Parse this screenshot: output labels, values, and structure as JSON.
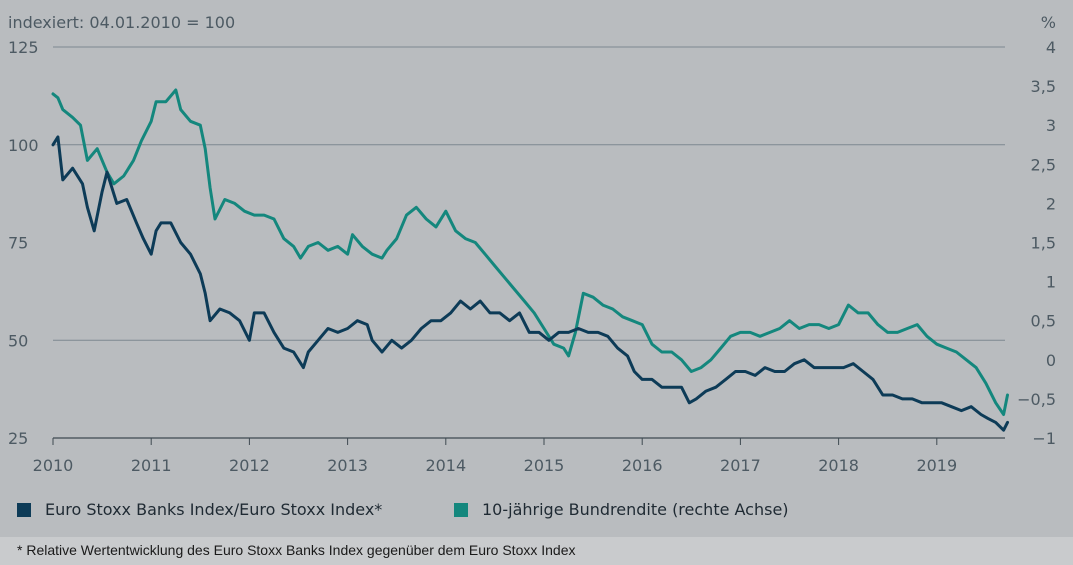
{
  "header": {
    "left_label": "indexiert: 04.01.2010 = 100",
    "right_label": "%"
  },
  "legend": {
    "series1": "Euro Stoxx Banks Index/Euro Stoxx Index*",
    "series2": "10-jährige Bundrendite (rechte Achse)"
  },
  "footnote": "* Relative Wertentwicklung des Euro Stoxx Banks Index gegenüber dem Euro Stoxx Index",
  "colors": {
    "series1": "#0d3b57",
    "series2": "#14877d",
    "grid": "#7d8891",
    "background": "#b9bcbf"
  },
  "chart_data": {
    "type": "line",
    "x_ticks": [
      "2010",
      "2011",
      "2012",
      "2013",
      "2014",
      "2015",
      "2016",
      "2017",
      "2018",
      "2019"
    ],
    "y_left": {
      "ticks": [
        "125",
        "100",
        "75",
        "50",
        "25"
      ],
      "range": [
        25,
        125
      ]
    },
    "y_right": {
      "ticks": [
        "4",
        "3,5",
        "3",
        "2,5",
        "2",
        "1,5",
        "1",
        "0,5",
        "0",
        "−0,5",
        "−1"
      ],
      "range": [
        -1,
        4
      ]
    },
    "gridlines_left": [
      100,
      50
    ],
    "series": [
      {
        "name": "Euro Stoxx Banks Index/Euro Stoxx Index*",
        "axis": "left",
        "color": "#0d3b57",
        "points": [
          [
            2010.0,
            100
          ],
          [
            2010.05,
            102
          ],
          [
            2010.1,
            91
          ],
          [
            2010.2,
            94
          ],
          [
            2010.3,
            90
          ],
          [
            2010.35,
            84
          ],
          [
            2010.42,
            78
          ],
          [
            2010.5,
            88
          ],
          [
            2010.55,
            93
          ],
          [
            2010.65,
            85
          ],
          [
            2010.75,
            86
          ],
          [
            2010.85,
            80
          ],
          [
            2010.92,
            76
          ],
          [
            2011.0,
            72
          ],
          [
            2011.05,
            78
          ],
          [
            2011.1,
            80
          ],
          [
            2011.2,
            80
          ],
          [
            2011.3,
            75
          ],
          [
            2011.4,
            72
          ],
          [
            2011.5,
            67
          ],
          [
            2011.55,
            62
          ],
          [
            2011.6,
            55
          ],
          [
            2011.7,
            58
          ],
          [
            2011.8,
            57
          ],
          [
            2011.9,
            55
          ],
          [
            2012.0,
            50
          ],
          [
            2012.05,
            57
          ],
          [
            2012.15,
            57
          ],
          [
            2012.25,
            52
          ],
          [
            2012.35,
            48
          ],
          [
            2012.45,
            47
          ],
          [
            2012.5,
            45
          ],
          [
            2012.55,
            43
          ],
          [
            2012.6,
            47
          ],
          [
            2012.7,
            50
          ],
          [
            2012.8,
            53
          ],
          [
            2012.9,
            52
          ],
          [
            2013.0,
            53
          ],
          [
            2013.1,
            55
          ],
          [
            2013.2,
            54
          ],
          [
            2013.25,
            50
          ],
          [
            2013.35,
            47
          ],
          [
            2013.45,
            50
          ],
          [
            2013.55,
            48
          ],
          [
            2013.65,
            50
          ],
          [
            2013.75,
            53
          ],
          [
            2013.85,
            55
          ],
          [
            2013.95,
            55
          ],
          [
            2014.05,
            57
          ],
          [
            2014.15,
            60
          ],
          [
            2014.25,
            58
          ],
          [
            2014.35,
            60
          ],
          [
            2014.45,
            57
          ],
          [
            2014.55,
            57
          ],
          [
            2014.65,
            55
          ],
          [
            2014.75,
            57
          ],
          [
            2014.85,
            52
          ],
          [
            2014.95,
            52
          ],
          [
            2015.05,
            50
          ],
          [
            2015.15,
            52
          ],
          [
            2015.25,
            52
          ],
          [
            2015.35,
            53
          ],
          [
            2015.45,
            52
          ],
          [
            2015.55,
            52
          ],
          [
            2015.65,
            51
          ],
          [
            2015.75,
            48
          ],
          [
            2015.85,
            46
          ],
          [
            2015.92,
            42
          ],
          [
            2016.0,
            40
          ],
          [
            2016.1,
            40
          ],
          [
            2016.2,
            38
          ],
          [
            2016.3,
            38
          ],
          [
            2016.4,
            38
          ],
          [
            2016.48,
            34
          ],
          [
            2016.55,
            35
          ],
          [
            2016.65,
            37
          ],
          [
            2016.75,
            38
          ],
          [
            2016.85,
            40
          ],
          [
            2016.95,
            42
          ],
          [
            2017.05,
            42
          ],
          [
            2017.15,
            41
          ],
          [
            2017.25,
            43
          ],
          [
            2017.35,
            42
          ],
          [
            2017.45,
            42
          ],
          [
            2017.55,
            44
          ],
          [
            2017.65,
            45
          ],
          [
            2017.75,
            43
          ],
          [
            2017.85,
            43
          ],
          [
            2017.95,
            43
          ],
          [
            2018.05,
            43
          ],
          [
            2018.15,
            44
          ],
          [
            2018.25,
            42
          ],
          [
            2018.35,
            40
          ],
          [
            2018.45,
            36
          ],
          [
            2018.55,
            36
          ],
          [
            2018.65,
            35
          ],
          [
            2018.75,
            35
          ],
          [
            2018.85,
            34
          ],
          [
            2018.95,
            34
          ],
          [
            2019.05,
            34
          ],
          [
            2019.15,
            33
          ],
          [
            2019.25,
            32
          ],
          [
            2019.35,
            33
          ],
          [
            2019.45,
            31
          ],
          [
            2019.52,
            30
          ],
          [
            2019.6,
            29
          ],
          [
            2019.68,
            27
          ],
          [
            2019.72,
            29
          ]
        ]
      },
      {
        "name": "10-jährige Bundrendite (rechte Achse)",
        "axis": "right",
        "color": "#14877d",
        "points": [
          [
            2010.0,
            3.4
          ],
          [
            2010.05,
            3.35
          ],
          [
            2010.1,
            3.2
          ],
          [
            2010.2,
            3.1
          ],
          [
            2010.28,
            3.0
          ],
          [
            2010.35,
            2.55
          ],
          [
            2010.45,
            2.7
          ],
          [
            2010.55,
            2.4
          ],
          [
            2010.62,
            2.25
          ],
          [
            2010.72,
            2.35
          ],
          [
            2010.82,
            2.55
          ],
          [
            2010.9,
            2.8
          ],
          [
            2011.0,
            3.05
          ],
          [
            2011.05,
            3.3
          ],
          [
            2011.15,
            3.3
          ],
          [
            2011.25,
            3.45
          ],
          [
            2011.3,
            3.2
          ],
          [
            2011.4,
            3.05
          ],
          [
            2011.5,
            3.0
          ],
          [
            2011.55,
            2.7
          ],
          [
            2011.6,
            2.2
          ],
          [
            2011.65,
            1.8
          ],
          [
            2011.75,
            2.05
          ],
          [
            2011.85,
            2.0
          ],
          [
            2011.95,
            1.9
          ],
          [
            2012.05,
            1.85
          ],
          [
            2012.15,
            1.85
          ],
          [
            2012.25,
            1.8
          ],
          [
            2012.35,
            1.55
          ],
          [
            2012.45,
            1.45
          ],
          [
            2012.52,
            1.3
          ],
          [
            2012.6,
            1.45
          ],
          [
            2012.7,
            1.5
          ],
          [
            2012.8,
            1.4
          ],
          [
            2012.9,
            1.45
          ],
          [
            2013.0,
            1.35
          ],
          [
            2013.05,
            1.6
          ],
          [
            2013.15,
            1.45
          ],
          [
            2013.25,
            1.35
          ],
          [
            2013.35,
            1.3
          ],
          [
            2013.4,
            1.4
          ],
          [
            2013.5,
            1.55
          ],
          [
            2013.6,
            1.85
          ],
          [
            2013.7,
            1.95
          ],
          [
            2013.8,
            1.8
          ],
          [
            2013.9,
            1.7
          ],
          [
            2014.0,
            1.9
          ],
          [
            2014.1,
            1.65
          ],
          [
            2014.2,
            1.55
          ],
          [
            2014.3,
            1.5
          ],
          [
            2014.4,
            1.35
          ],
          [
            2014.5,
            1.2
          ],
          [
            2014.6,
            1.05
          ],
          [
            2014.7,
            0.9
          ],
          [
            2014.8,
            0.75
          ],
          [
            2014.9,
            0.6
          ],
          [
            2015.0,
            0.4
          ],
          [
            2015.1,
            0.2
          ],
          [
            2015.2,
            0.15
          ],
          [
            2015.25,
            0.05
          ],
          [
            2015.32,
            0.35
          ],
          [
            2015.4,
            0.85
          ],
          [
            2015.5,
            0.8
          ],
          [
            2015.6,
            0.7
          ],
          [
            2015.7,
            0.65
          ],
          [
            2015.8,
            0.55
          ],
          [
            2015.9,
            0.5
          ],
          [
            2016.0,
            0.45
          ],
          [
            2016.1,
            0.2
          ],
          [
            2016.2,
            0.1
          ],
          [
            2016.3,
            0.1
          ],
          [
            2016.4,
            0.0
          ],
          [
            2016.5,
            -0.15
          ],
          [
            2016.6,
            -0.1
          ],
          [
            2016.7,
            0.0
          ],
          [
            2016.8,
            0.15
          ],
          [
            2016.9,
            0.3
          ],
          [
            2017.0,
            0.35
          ],
          [
            2017.1,
            0.35
          ],
          [
            2017.2,
            0.3
          ],
          [
            2017.3,
            0.35
          ],
          [
            2017.4,
            0.4
          ],
          [
            2017.5,
            0.5
          ],
          [
            2017.6,
            0.4
          ],
          [
            2017.7,
            0.45
          ],
          [
            2017.8,
            0.45
          ],
          [
            2017.9,
            0.4
          ],
          [
            2018.0,
            0.45
          ],
          [
            2018.1,
            0.7
          ],
          [
            2018.2,
            0.6
          ],
          [
            2018.3,
            0.6
          ],
          [
            2018.4,
            0.45
          ],
          [
            2018.5,
            0.35
          ],
          [
            2018.6,
            0.35
          ],
          [
            2018.7,
            0.4
          ],
          [
            2018.8,
            0.45
          ],
          [
            2018.9,
            0.3
          ],
          [
            2019.0,
            0.2
          ],
          [
            2019.1,
            0.15
          ],
          [
            2019.2,
            0.1
          ],
          [
            2019.3,
            0.0
          ],
          [
            2019.4,
            -0.1
          ],
          [
            2019.5,
            -0.3
          ],
          [
            2019.6,
            -0.55
          ],
          [
            2019.68,
            -0.7
          ],
          [
            2019.72,
            -0.45
          ]
        ]
      }
    ]
  }
}
